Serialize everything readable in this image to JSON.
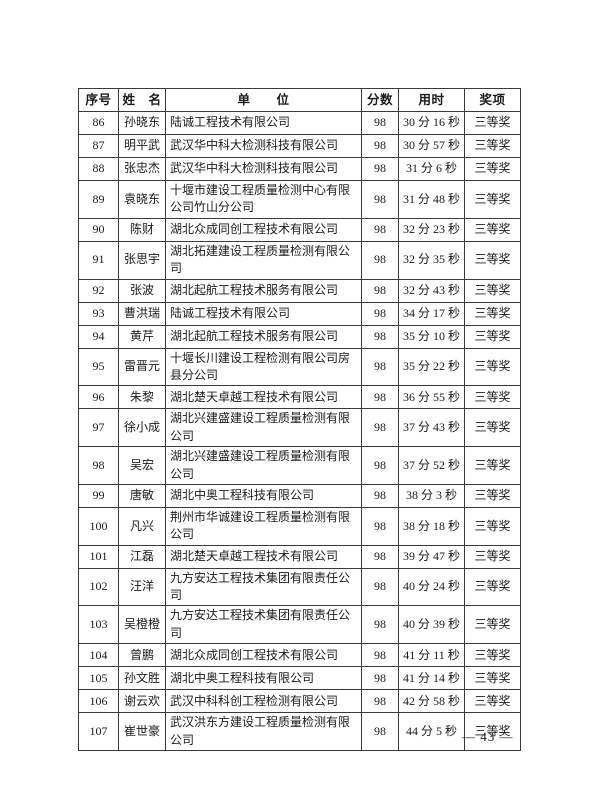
{
  "page": {
    "number_label": "— 43 —"
  },
  "table": {
    "columns": [
      {
        "key": "no",
        "label": "序号"
      },
      {
        "key": "name",
        "label": "姓　名"
      },
      {
        "key": "org",
        "label": "单　　位"
      },
      {
        "key": "score",
        "label": "分数"
      },
      {
        "key": "time",
        "label": "用时"
      },
      {
        "key": "award",
        "label": "奖项"
      }
    ],
    "rows": [
      {
        "no": "86",
        "name": "孙晓东",
        "org": "陆诚工程技术有限公司",
        "score": "98",
        "time": "30 分 16 秒",
        "award": "三等奖"
      },
      {
        "no": "87",
        "name": "明平武",
        "org": "武汉华中科大检测科技有限公司",
        "score": "98",
        "time": "30 分 57 秒",
        "award": "三等奖"
      },
      {
        "no": "88",
        "name": "张忠杰",
        "org": "武汉华中科大检测科技有限公司",
        "score": "98",
        "time": "31 分 6 秒",
        "award": "三等奖"
      },
      {
        "no": "89",
        "name": "袁晓东",
        "org": "十堰市建设工程质量检测中心有限公司竹山分公司",
        "score": "98",
        "time": "31 分 48 秒",
        "award": "三等奖"
      },
      {
        "no": "90",
        "name": "陈财",
        "org": "湖北众成同创工程技术有限公司",
        "score": "98",
        "time": "32 分 23 秒",
        "award": "三等奖"
      },
      {
        "no": "91",
        "name": "张思宇",
        "org": "湖北拓建建设工程质量检测有限公司",
        "score": "98",
        "time": "32 分 35 秒",
        "award": "三等奖"
      },
      {
        "no": "92",
        "name": "张波",
        "org": "湖北起航工程技术服务有限公司",
        "score": "98",
        "time": "32 分 43 秒",
        "award": "三等奖"
      },
      {
        "no": "93",
        "name": "曹洪瑞",
        "org": "陆诚工程技术有限公司",
        "score": "98",
        "time": "34 分 17 秒",
        "award": "三等奖"
      },
      {
        "no": "94",
        "name": "黄芹",
        "org": "湖北起航工程技术服务有限公司",
        "score": "98",
        "time": "35 分 10 秒",
        "award": "三等奖"
      },
      {
        "no": "95",
        "name": "雷晋元",
        "org": "十堰长川建设工程检测有限公司房县分公司",
        "score": "98",
        "time": "35 分 22 秒",
        "award": "三等奖"
      },
      {
        "no": "96",
        "name": "朱黎",
        "org": "湖北楚天卓越工程技术有限公司",
        "score": "98",
        "time": "36 分 55 秒",
        "award": "三等奖"
      },
      {
        "no": "97",
        "name": "徐小成",
        "org": "湖北兴建盛建设工程质量检测有限公司",
        "score": "98",
        "time": "37 分 43 秒",
        "award": "三等奖"
      },
      {
        "no": "98",
        "name": "吴宏",
        "org": "湖北兴建盛建设工程质量检测有限公司",
        "score": "98",
        "time": "37 分 52 秒",
        "award": "三等奖"
      },
      {
        "no": "99",
        "name": "唐敏",
        "org": "湖北中奥工程科技有限公司",
        "score": "98",
        "time": "38 分 3 秒",
        "award": "三等奖"
      },
      {
        "no": "100",
        "name": "凡兴",
        "org": "荆州市华诚建设工程质量检测有限公司",
        "score": "98",
        "time": "38 分 18 秒",
        "award": "三等奖"
      },
      {
        "no": "101",
        "name": "江磊",
        "org": "湖北楚天卓越工程技术有限公司",
        "score": "98",
        "time": "39 分 47 秒",
        "award": "三等奖"
      },
      {
        "no": "102",
        "name": "汪洋",
        "org": "九方安达工程技术集团有限责任公司",
        "score": "98",
        "time": "40 分 24 秒",
        "award": "三等奖"
      },
      {
        "no": "103",
        "name": "吴橙橙",
        "org": "九方安达工程技术集团有限责任公司",
        "score": "98",
        "time": "40 分 39 秒",
        "award": "三等奖"
      },
      {
        "no": "104",
        "name": "曾鹏",
        "org": "湖北众成同创工程技术有限公司",
        "score": "98",
        "time": "41 分 11 秒",
        "award": "三等奖"
      },
      {
        "no": "105",
        "name": "孙文胜",
        "org": "湖北中奥工程科技有限公司",
        "score": "98",
        "time": "41 分 14 秒",
        "award": "三等奖"
      },
      {
        "no": "106",
        "name": "谢云欢",
        "org": "武汉中科科创工程检测有限公司",
        "score": "98",
        "time": "42 分 58 秒",
        "award": "三等奖"
      },
      {
        "no": "107",
        "name": "崔世豪",
        "org": "武汉洪东方建设工程质量检测有限公司",
        "score": "98",
        "time": "44 分 5 秒",
        "award": "三等奖"
      }
    ]
  }
}
